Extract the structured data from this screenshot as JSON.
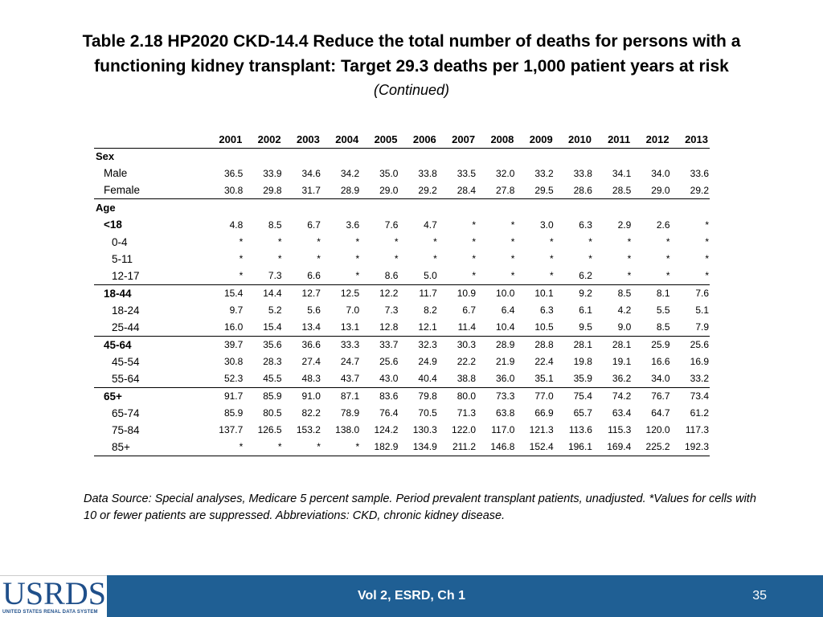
{
  "title": {
    "line1": "Table 2.18  HP2020 CKD-14.4 Reduce the total number of deaths for persons with a",
    "line2": "functioning kidney transplant: Target 29.3 deaths per 1,000 patient years at risk",
    "continued": "(Continued)"
  },
  "table": {
    "years": [
      "2001",
      "2002",
      "2003",
      "2004",
      "2005",
      "2006",
      "2007",
      "2008",
      "2009",
      "2010",
      "2011",
      "2012",
      "2013"
    ],
    "rows": [
      {
        "label": "Sex",
        "values": []
      },
      {
        "label": "Male",
        "values": [
          "36.5",
          "33.9",
          "34.6",
          "34.2",
          "35.0",
          "33.8",
          "33.5",
          "32.0",
          "33.2",
          "33.8",
          "34.1",
          "34.0",
          "33.6"
        ]
      },
      {
        "label": "Female",
        "values": [
          "30.8",
          "29.8",
          "31.7",
          "28.9",
          "29.0",
          "29.2",
          "28.4",
          "27.8",
          "29.5",
          "28.6",
          "28.5",
          "29.0",
          "29.2"
        ]
      },
      {
        "label": "Age",
        "values": []
      },
      {
        "label": "<18",
        "values": [
          "4.8",
          "8.5",
          "6.7",
          "3.6",
          "7.6",
          "4.7",
          "*",
          "*",
          "3.0",
          "6.3",
          "2.9",
          "2.6",
          "*"
        ]
      },
      {
        "label": "0-4",
        "values": [
          "*",
          "*",
          "*",
          "*",
          "*",
          "*",
          "*",
          "*",
          "*",
          "*",
          "*",
          "*",
          "*"
        ]
      },
      {
        "label": "5-11",
        "values": [
          "*",
          "*",
          "*",
          "*",
          "*",
          "*",
          "*",
          "*",
          "*",
          "*",
          "*",
          "*",
          "*"
        ]
      },
      {
        "label": "12-17",
        "values": [
          "*",
          "7.3",
          "6.6",
          "*",
          "8.6",
          "5.0",
          "*",
          "*",
          "*",
          "6.2",
          "*",
          "*",
          "*"
        ]
      },
      {
        "label": "18-44",
        "values": [
          "15.4",
          "14.4",
          "12.7",
          "12.5",
          "12.2",
          "11.7",
          "10.9",
          "10.0",
          "10.1",
          "9.2",
          "8.5",
          "8.1",
          "7.6"
        ]
      },
      {
        "label": "18-24",
        "values": [
          "9.7",
          "5.2",
          "5.6",
          "7.0",
          "7.3",
          "8.2",
          "6.7",
          "6.4",
          "6.3",
          "6.1",
          "4.2",
          "5.5",
          "5.1"
        ]
      },
      {
        "label": "25-44",
        "values": [
          "16.0",
          "15.4",
          "13.4",
          "13.1",
          "12.8",
          "12.1",
          "11.4",
          "10.4",
          "10.5",
          "9.5",
          "9.0",
          "8.5",
          "7.9"
        ]
      },
      {
        "label": "45-64",
        "values": [
          "39.7",
          "35.6",
          "36.6",
          "33.3",
          "33.7",
          "32.3",
          "30.3",
          "28.9",
          "28.8",
          "28.1",
          "28.1",
          "25.9",
          "25.6"
        ]
      },
      {
        "label": "45-54",
        "values": [
          "30.8",
          "28.3",
          "27.4",
          "24.7",
          "25.6",
          "24.9",
          "22.2",
          "21.9",
          "22.4",
          "19.8",
          "19.1",
          "16.6",
          "16.9"
        ]
      },
      {
        "label": "55-64",
        "values": [
          "52.3",
          "45.5",
          "48.3",
          "43.7",
          "43.0",
          "40.4",
          "38.8",
          "36.0",
          "35.1",
          "35.9",
          "36.2",
          "34.0",
          "33.2"
        ]
      },
      {
        "label": "65+",
        "values": [
          "91.7",
          "85.9",
          "91.0",
          "87.1",
          "83.6",
          "79.8",
          "80.0",
          "73.3",
          "77.0",
          "75.4",
          "74.2",
          "76.7",
          "73.4"
        ]
      },
      {
        "label": "65-74",
        "values": [
          "85.9",
          "80.5",
          "82.2",
          "78.9",
          "76.4",
          "70.5",
          "71.3",
          "63.8",
          "66.9",
          "65.7",
          "63.4",
          "64.7",
          "61.2"
        ]
      },
      {
        "label": "75-84",
        "values": [
          "137.7",
          "126.5",
          "153.2",
          "138.0",
          "124.2",
          "130.3",
          "122.0",
          "117.0",
          "121.3",
          "113.6",
          "115.3",
          "120.0",
          "117.3"
        ]
      },
      {
        "label": "85+",
        "values": [
          "*",
          "*",
          "*",
          "*",
          "182.9",
          "134.9",
          "211.2",
          "146.8",
          "152.4",
          "196.1",
          "169.4",
          "225.2",
          "192.3"
        ]
      }
    ]
  },
  "source": "Data Source: Special analyses, Medicare 5 percent sample. Period prevalent transplant patients, unadjusted. *Values for cells with 10 or fewer patients are suppressed. Abbreviations: CKD, chronic kidney disease.",
  "footer": {
    "logo_text": "USRDS",
    "logo_sub": "UNITED STATES RENAL DATA SYSTEM",
    "section": "Vol 2, ESRD, Ch 1",
    "page": "35"
  },
  "colors": {
    "footer_bar": "#1f5f94",
    "logo": "#1f4f8a"
  }
}
